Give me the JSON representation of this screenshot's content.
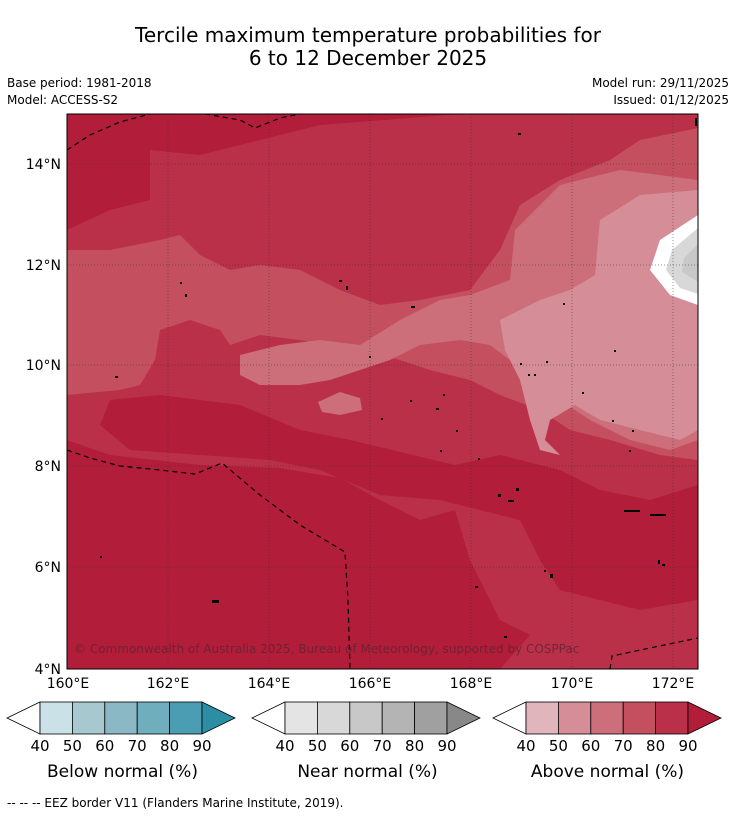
{
  "title": {
    "line1": "Tercile maximum temperature probabilities for",
    "line2": "6 to 12 December 2025"
  },
  "meta": {
    "base_period": "Base period: 1981-2018",
    "model": "Model: ACCESS-S2",
    "model_run": "Model run: 29/11/2025",
    "issued": "Issued: 01/12/2025"
  },
  "map": {
    "lat_labels": [
      "14°N",
      "12°N",
      "10°N",
      "8°N",
      "6°N",
      "4°N"
    ],
    "lon_labels": [
      "160°E",
      "162°E",
      "164°E",
      "166°E",
      "168°E",
      "170°E",
      "172°E"
    ],
    "copyright": "© Commonwealth of Australia 2025, Bureau of Meteorology, supported by COSPPac"
  },
  "colorbars": [
    {
      "name": "below",
      "label": "Below normal (%)",
      "ticks": [
        "40",
        "50",
        "60",
        "70",
        "80",
        "90"
      ],
      "colors": [
        "#ffffff",
        "#c9e1e7",
        "#a7c8ce",
        "#8ab8c4",
        "#6eaebd",
        "#4a9db2",
        "#2c8ea5"
      ]
    },
    {
      "name": "near",
      "label": "Near normal (%)",
      "ticks": [
        "40",
        "50",
        "60",
        "70",
        "80",
        "90"
      ],
      "colors": [
        "#ffffff",
        "#e4e4e4",
        "#d8d8d8",
        "#c8c8c8",
        "#b4b4b4",
        "#a0a0a0",
        "#888888"
      ]
    },
    {
      "name": "above",
      "label": "Above normal (%)",
      "ticks": [
        "40",
        "50",
        "60",
        "70",
        "80",
        "90"
      ],
      "colors": [
        "#ffffff",
        "#e0b5bb",
        "#d58e98",
        "#cc6f7b",
        "#c44f5f",
        "#ba3049",
        "#b21d3a"
      ]
    }
  ],
  "footnote": "-- -- -- EEZ border V11 (Flanders Marine Institute, 2019)."
}
